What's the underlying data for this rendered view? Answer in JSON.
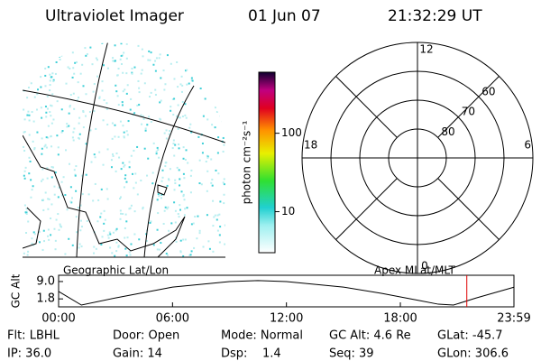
{
  "header": {
    "title": "Ultraviolet Imager",
    "date": "01 Jun 07",
    "time": "21:32:29 UT"
  },
  "colorbar": {
    "label": "photon cm⁻²s⁻¹",
    "log": true,
    "lim": [
      3,
      600
    ],
    "ticks": [
      10,
      100
    ]
  },
  "polar": {
    "mlt_labels": [
      "12",
      "18",
      "6",
      "0"
    ],
    "rings": [
      80,
      70,
      60
    ],
    "lat_min": 50
  },
  "map_label": "Geographic Lat/Lon",
  "polar_label": "Apex MLat/MLT",
  "chart_data": {
    "type": "line",
    "ylabel": "GC Alt",
    "x": [
      0,
      1.2,
      3,
      6,
      9,
      10.5,
      12,
      15,
      17,
      19,
      20,
      20.8,
      22,
      24
    ],
    "series": [
      {
        "color": "#000000",
        "values": [
          4.9,
          -0.75,
          2.2,
          6.7,
          9.0,
          9.4,
          9.0,
          6.7,
          4.1,
          1.1,
          -0.4,
          -0.75,
          2.2,
          6.7
        ]
      }
    ],
    "xlim": [
      0,
      23.983
    ],
    "ylim": [
      -1.5,
      11.6
    ],
    "xticks": [
      {
        "value": 0,
        "label": "00:00"
      },
      {
        "value": 6,
        "label": "06:00"
      },
      {
        "value": 12,
        "label": "12:00"
      },
      {
        "value": 18,
        "label": "18:00"
      },
      {
        "value": 23.983,
        "label": "23:59"
      }
    ],
    "yticks": [
      {
        "value": 1.8,
        "label": "1.8"
      },
      {
        "value": 9,
        "label": "9.0"
      }
    ],
    "marker_x": 21.5,
    "marker_color": "#e00000"
  },
  "info": [
    [
      "Flt: LBHL",
      "Door: Open",
      "Mode: Normal",
      "GC Alt: 4.6 Re",
      "GLat: -45.7"
    ],
    [
      "IP: 36.0",
      "Gain: 14",
      "Dsp:    1.4",
      "Seq: 39",
      "GLon: 306.6"
    ]
  ]
}
